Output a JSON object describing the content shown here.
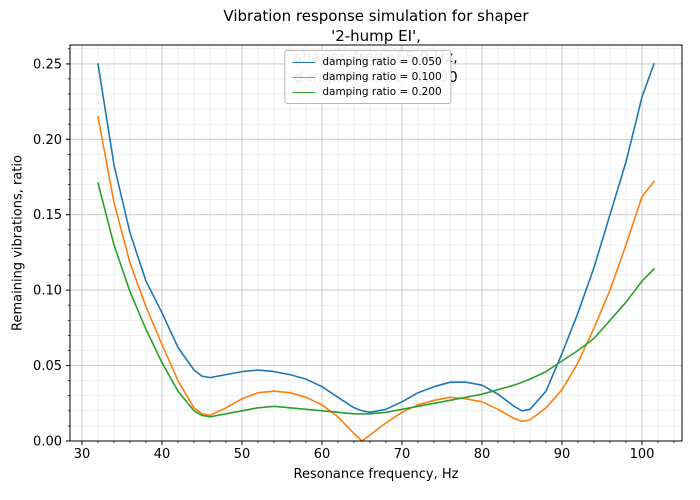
{
  "chart_data": {
    "type": "line",
    "title": "Vibration response simulation for shaper '2-hump EI',\nshaper_freq=65.0 Hz, damping_ratio=0.100",
    "xlabel": "Resonance frequency, Hz",
    "ylabel": "Remaining vibrations, ratio",
    "xlim": [
      28.5,
      105.0
    ],
    "ylim": [
      0,
      0.2625
    ],
    "xtick_values": [
      30,
      40,
      50,
      60,
      70,
      80,
      90,
      100
    ],
    "xtick_labels": [
      "30",
      "40",
      "50",
      "60",
      "70",
      "80",
      "90",
      "100"
    ],
    "ytick_values": [
      0.0,
      0.05,
      0.1,
      0.15,
      0.2,
      0.25
    ],
    "ytick_labels": [
      "0.00",
      "0.05",
      "0.10",
      "0.15",
      "0.20",
      "0.25"
    ],
    "x_minor_step": 2,
    "y_minor_step": 0.01,
    "grid": {
      "major": true,
      "minor": true
    },
    "legend_position": "upper center",
    "x": [
      32,
      34,
      36,
      38,
      40,
      42,
      44,
      45,
      46,
      48,
      50,
      52,
      54,
      56,
      58,
      60,
      62,
      64,
      65,
      66,
      68,
      70,
      72,
      74,
      76,
      78,
      80,
      82,
      84,
      85,
      86,
      88,
      90,
      92,
      94,
      96,
      98,
      100,
      101.5
    ],
    "series": [
      {
        "name": "damping ratio = 0.050",
        "color": "#1f77b4",
        "values": [
          0.25,
          0.183,
          0.138,
          0.106,
          0.085,
          0.062,
          0.047,
          0.043,
          0.042,
          0.044,
          0.046,
          0.047,
          0.046,
          0.044,
          0.041,
          0.036,
          0.029,
          0.022,
          0.02,
          0.019,
          0.021,
          0.026,
          0.032,
          0.036,
          0.039,
          0.039,
          0.037,
          0.031,
          0.023,
          0.02,
          0.021,
          0.033,
          0.058,
          0.085,
          0.115,
          0.15,
          0.185,
          0.228,
          0.25
        ]
      },
      {
        "name": "damping ratio = 0.100",
        "color": "#ff7f0e",
        "values": [
          0.215,
          0.158,
          0.118,
          0.089,
          0.064,
          0.04,
          0.022,
          0.018,
          0.017,
          0.022,
          0.028,
          0.032,
          0.033,
          0.032,
          0.029,
          0.024,
          0.016,
          0.005,
          0.0,
          0.004,
          0.012,
          0.019,
          0.024,
          0.027,
          0.029,
          0.028,
          0.026,
          0.021,
          0.015,
          0.013,
          0.014,
          0.022,
          0.034,
          0.052,
          0.075,
          0.1,
          0.13,
          0.162,
          0.172
        ]
      },
      {
        "name": "damping ratio = 0.200",
        "color": "#2ca02c",
        "values": [
          0.171,
          0.13,
          0.099,
          0.074,
          0.052,
          0.033,
          0.02,
          0.017,
          0.016,
          0.018,
          0.02,
          0.022,
          0.023,
          0.022,
          0.021,
          0.02,
          0.019,
          0.018,
          0.018,
          0.018,
          0.019,
          0.021,
          0.023,
          0.025,
          0.027,
          0.029,
          0.031,
          0.034,
          0.037,
          0.039,
          0.041,
          0.046,
          0.053,
          0.06,
          0.068,
          0.08,
          0.092,
          0.106,
          0.114
        ]
      }
    ],
    "style": {
      "major_grid_color": "#c6c6c6",
      "minor_grid_color": "#e4e4e4",
      "spine_color": "#000000",
      "background": "#ffffff"
    }
  }
}
